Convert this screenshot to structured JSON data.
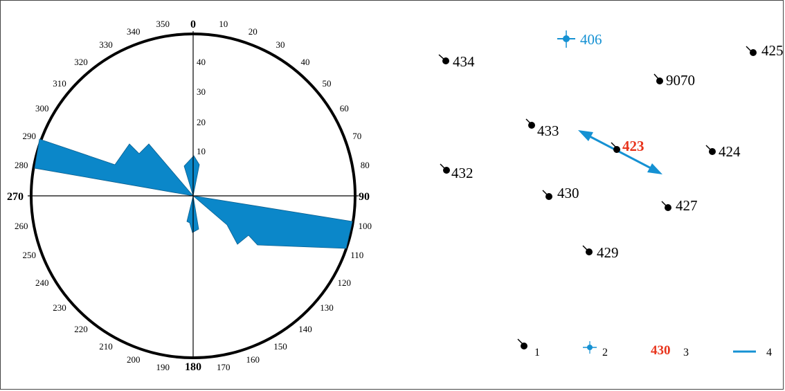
{
  "rose": {
    "cardinal_labels": {
      "n": "0",
      "e": "90",
      "s": "180",
      "w": "270"
    },
    "degree_labels": [
      "10",
      "20",
      "30",
      "40",
      "50",
      "60",
      "70",
      "80",
      "100",
      "110",
      "120",
      "130",
      "140",
      "150",
      "160",
      "170",
      "190",
      "200",
      "210",
      "220",
      "230",
      "240",
      "250",
      "260",
      "280",
      "290",
      "300",
      "310",
      "320",
      "330",
      "340",
      "350"
    ],
    "radial_labels": [
      "10",
      "20",
      "30",
      "40"
    ],
    "petal_color": "#0b87c9"
  },
  "map": {
    "points": [
      {
        "id": "434"
      },
      {
        "id": "9070"
      },
      {
        "id": "425"
      },
      {
        "id": "433"
      },
      {
        "id": "424"
      },
      {
        "id": "432"
      },
      {
        "id": "430"
      },
      {
        "id": "427"
      },
      {
        "id": "429"
      }
    ],
    "blue_point": {
      "label": "406"
    },
    "highlight_point": {
      "label": "423"
    },
    "colors": {
      "point": "#000000",
      "blue": "#1591d3",
      "highlight": "#e8341c",
      "arrow": "#1591d3"
    }
  },
  "legend": {
    "item1": "1",
    "item2": "2",
    "item3_sample": "430",
    "item3": "3",
    "item4": "4"
  }
}
